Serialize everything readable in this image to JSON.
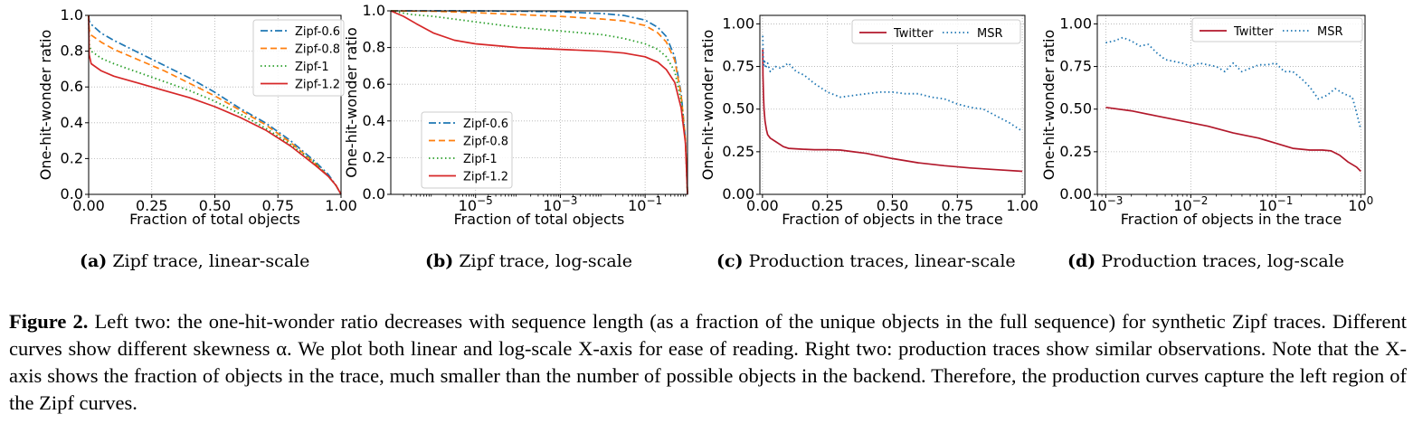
{
  "colors": {
    "zipf06": "#1f77b4",
    "zipf08": "#ff7f0e",
    "zipf1": "#2ca02c",
    "zipf12": "#d62728",
    "twitter": "#b2182b",
    "msr": "#1f77b4"
  },
  "chart_data": [
    {
      "type": "line",
      "title": "",
      "xlabel": "Fraction of total objects",
      "ylabel": "One-hit-wonder ratio",
      "xscale": "linear",
      "xlim": [
        0,
        1
      ],
      "ylim": [
        0,
        1
      ],
      "xticks": [
        0,
        0.25,
        0.5,
        0.75,
        1
      ],
      "xtick_labels": [
        "0.00",
        "0.25",
        "0.50",
        "0.75",
        "1.00"
      ],
      "yticks": [
        0,
        0.2,
        0.4,
        0.6,
        0.8,
        1
      ],
      "ytick_labels": [
        "0.0",
        "0.2",
        "0.4",
        "0.6",
        "0.8",
        "1.0"
      ],
      "legend_position": "top-right",
      "series": [
        {
          "name": "Zipf-0.6",
          "style": "dashdot",
          "color_key": "zipf06",
          "x": [
            0,
            0.002,
            0.01,
            0.05,
            0.1,
            0.2,
            0.3,
            0.4,
            0.5,
            0.6,
            0.7,
            0.8,
            0.9,
            0.95,
            0.98,
            1
          ],
          "y": [
            1,
            0.97,
            0.95,
            0.9,
            0.86,
            0.79,
            0.72,
            0.65,
            0.57,
            0.48,
            0.4,
            0.3,
            0.18,
            0.11,
            0.05,
            0
          ]
        },
        {
          "name": "Zipf-0.8",
          "style": "dashed",
          "color_key": "zipf08",
          "x": [
            0,
            0.002,
            0.01,
            0.05,
            0.1,
            0.2,
            0.3,
            0.4,
            0.5,
            0.6,
            0.7,
            0.8,
            0.9,
            0.95,
            0.98,
            1
          ],
          "y": [
            1,
            0.92,
            0.89,
            0.85,
            0.81,
            0.75,
            0.69,
            0.62,
            0.55,
            0.47,
            0.39,
            0.29,
            0.17,
            0.1,
            0.05,
            0
          ]
        },
        {
          "name": "Zipf-1",
          "style": "dotted",
          "color_key": "zipf1",
          "x": [
            0,
            0.002,
            0.01,
            0.05,
            0.1,
            0.2,
            0.3,
            0.4,
            0.5,
            0.6,
            0.7,
            0.8,
            0.9,
            0.95,
            0.98,
            1
          ],
          "y": [
            1,
            0.84,
            0.8,
            0.76,
            0.73,
            0.68,
            0.63,
            0.58,
            0.52,
            0.45,
            0.37,
            0.28,
            0.17,
            0.1,
            0.05,
            0
          ]
        },
        {
          "name": "Zipf-1.2",
          "style": "solid",
          "color_key": "zipf12",
          "x": [
            0,
            0.002,
            0.01,
            0.05,
            0.1,
            0.2,
            0.3,
            0.4,
            0.5,
            0.6,
            0.7,
            0.8,
            0.9,
            0.95,
            0.98,
            1
          ],
          "y": [
            1,
            0.78,
            0.73,
            0.69,
            0.66,
            0.62,
            0.58,
            0.54,
            0.49,
            0.43,
            0.36,
            0.27,
            0.16,
            0.1,
            0.05,
            0
          ]
        }
      ]
    },
    {
      "type": "line",
      "title": "",
      "xlabel": "Fraction of total objects",
      "ylabel": "One-hit-wonder ratio",
      "xscale": "log",
      "xlim_log10": [
        -7,
        0
      ],
      "ylim": [
        0,
        1
      ],
      "xticks_log10": [
        -5,
        -3,
        -1
      ],
      "xtick_labels": [
        "10^-5",
        "10^-3",
        "10^-1"
      ],
      "yticks": [
        0,
        0.2,
        0.4,
        0.6,
        0.8,
        1
      ],
      "ytick_labels": [
        "0.0",
        "0.2",
        "0.4",
        "0.6",
        "0.8",
        "1.0"
      ],
      "legend_position": "lower-left",
      "series": [
        {
          "name": "Zipf-0.6",
          "style": "dashdot",
          "color_key": "zipf06",
          "x_log10": [
            -7,
            -6,
            -5,
            -4,
            -3,
            -2,
            -1.5,
            -1,
            -0.7,
            -0.5,
            -0.3,
            -0.15,
            -0.05,
            0
          ],
          "y": [
            1,
            1,
            1,
            0.998,
            0.995,
            0.985,
            0.975,
            0.95,
            0.91,
            0.86,
            0.75,
            0.55,
            0.3,
            0
          ]
        },
        {
          "name": "Zipf-0.8",
          "style": "dashed",
          "color_key": "zipf08",
          "x_log10": [
            -7,
            -6,
            -5,
            -4,
            -3,
            -2,
            -1.5,
            -1,
            -0.7,
            -0.5,
            -0.3,
            -0.15,
            -0.05,
            0
          ],
          "y": [
            1,
            0.998,
            0.99,
            0.98,
            0.97,
            0.955,
            0.945,
            0.92,
            0.88,
            0.83,
            0.73,
            0.54,
            0.3,
            0
          ]
        },
        {
          "name": "Zipf-1",
          "style": "dotted",
          "color_key": "zipf1",
          "x_log10": [
            -7,
            -6.5,
            -6,
            -5,
            -4,
            -3,
            -2,
            -1.5,
            -1,
            -0.7,
            -0.5,
            -0.3,
            -0.15,
            -0.05,
            0
          ],
          "y": [
            1,
            0.98,
            0.97,
            0.94,
            0.91,
            0.89,
            0.87,
            0.85,
            0.82,
            0.79,
            0.75,
            0.67,
            0.51,
            0.29,
            0
          ]
        },
        {
          "name": "Zipf-1.2",
          "style": "solid",
          "color_key": "zipf12",
          "x_log10": [
            -7,
            -6.7,
            -6.4,
            -6,
            -5.5,
            -5,
            -4,
            -3,
            -2,
            -1.5,
            -1,
            -0.7,
            -0.5,
            -0.3,
            -0.15,
            -0.05,
            0
          ],
          "y": [
            1,
            0.97,
            0.93,
            0.88,
            0.84,
            0.82,
            0.8,
            0.79,
            0.78,
            0.77,
            0.75,
            0.72,
            0.68,
            0.61,
            0.47,
            0.28,
            0
          ]
        }
      ]
    },
    {
      "type": "line",
      "title": "",
      "xlabel": "Fraction of objects in the trace",
      "ylabel": "One-hit-wonder ratio",
      "xscale": "linear",
      "xlim": [
        -0.01,
        1.01
      ],
      "ylim": [
        0,
        1.05
      ],
      "xticks": [
        0,
        0.25,
        0.5,
        0.75,
        1
      ],
      "xtick_labels": [
        "0.00",
        "0.25",
        "0.50",
        "0.75",
        "1.00"
      ],
      "yticks": [
        0,
        0.25,
        0.5,
        0.75,
        1
      ],
      "ytick_labels": [
        "0.00",
        "0.25",
        "0.50",
        "0.75",
        "1.00"
      ],
      "legend_position": "top-right",
      "series": [
        {
          "name": "Twitter",
          "style": "solid",
          "color_key": "twitter",
          "x": [
            0.001,
            0.002,
            0.004,
            0.006,
            0.01,
            0.015,
            0.02,
            0.03,
            0.05,
            0.08,
            0.1,
            0.15,
            0.2,
            0.25,
            0.3,
            0.35,
            0.4,
            0.45,
            0.5,
            0.6,
            0.7,
            0.8,
            0.9,
            1.0
          ],
          "y": [
            0.85,
            0.7,
            0.58,
            0.5,
            0.43,
            0.38,
            0.35,
            0.33,
            0.31,
            0.28,
            0.27,
            0.265,
            0.262,
            0.262,
            0.26,
            0.25,
            0.24,
            0.225,
            0.21,
            0.185,
            0.168,
            0.155,
            0.145,
            0.135
          ]
        },
        {
          "name": "MSR",
          "style": "dotted",
          "color_key": "msr",
          "x": [
            0.001,
            0.003,
            0.005,
            0.008,
            0.012,
            0.02,
            0.03,
            0.05,
            0.07,
            0.1,
            0.13,
            0.16,
            0.2,
            0.25,
            0.3,
            0.35,
            0.4,
            0.45,
            0.5,
            0.55,
            0.6,
            0.65,
            0.7,
            0.75,
            0.8,
            0.85,
            0.9,
            0.95,
            1.0
          ],
          "y": [
            0.93,
            0.8,
            0.76,
            0.78,
            0.74,
            0.77,
            0.72,
            0.75,
            0.74,
            0.77,
            0.72,
            0.7,
            0.65,
            0.6,
            0.57,
            0.58,
            0.59,
            0.6,
            0.6,
            0.59,
            0.59,
            0.57,
            0.56,
            0.53,
            0.51,
            0.5,
            0.46,
            0.42,
            0.37
          ]
        }
      ]
    },
    {
      "type": "line",
      "title": "",
      "xlabel": "Fraction of objects in the trace",
      "ylabel": "One-hit-wonder ratio",
      "xscale": "log",
      "xlim_log10": [
        -3.1,
        0.05
      ],
      "ylim": [
        0,
        1.05
      ],
      "xticks_log10": [
        -3,
        -2,
        -1,
        0
      ],
      "xtick_labels": [
        "10^-3",
        "10^-2",
        "10^-1",
        "10^0"
      ],
      "yticks": [
        0,
        0.25,
        0.5,
        0.75,
        1
      ],
      "ytick_labels": [
        "0.00",
        "0.25",
        "0.50",
        "0.75",
        "1.00"
      ],
      "legend_position": "top-right",
      "series": [
        {
          "name": "Twitter",
          "style": "solid",
          "color_key": "twitter",
          "x_log10": [
            -3,
            -2.7,
            -2.4,
            -2.1,
            -1.8,
            -1.5,
            -1.2,
            -1,
            -0.8,
            -0.6,
            -0.45,
            -0.35,
            -0.25,
            -0.15,
            -0.05,
            0
          ],
          "y": [
            0.51,
            0.49,
            0.46,
            0.43,
            0.4,
            0.36,
            0.33,
            0.3,
            0.27,
            0.26,
            0.26,
            0.255,
            0.23,
            0.19,
            0.16,
            0.135
          ]
        },
        {
          "name": "MSR",
          "style": "dotted",
          "color_key": "msr",
          "x_log10": [
            -3,
            -2.9,
            -2.8,
            -2.7,
            -2.6,
            -2.5,
            -2.4,
            -2.3,
            -2.2,
            -2.1,
            -2.0,
            -1.9,
            -1.8,
            -1.7,
            -1.6,
            -1.5,
            -1.4,
            -1.3,
            -1.2,
            -1.1,
            -1.0,
            -0.9,
            -0.8,
            -0.7,
            -0.6,
            -0.5,
            -0.4,
            -0.3,
            -0.2,
            -0.1,
            -0.05,
            0
          ],
          "y": [
            0.89,
            0.9,
            0.92,
            0.9,
            0.87,
            0.88,
            0.83,
            0.79,
            0.78,
            0.77,
            0.75,
            0.77,
            0.76,
            0.75,
            0.72,
            0.77,
            0.72,
            0.74,
            0.76,
            0.76,
            0.77,
            0.72,
            0.72,
            0.68,
            0.63,
            0.56,
            0.58,
            0.62,
            0.59,
            0.57,
            0.48,
            0.38
          ]
        }
      ]
    }
  ],
  "subcaptions": [
    {
      "tag": "(a)",
      "text": "Zipf trace, linear-scale"
    },
    {
      "tag": "(b)",
      "text": "Zipf trace, log-scale"
    },
    {
      "tag": "(c)",
      "text": "Production traces, linear-scale"
    },
    {
      "tag": "(d)",
      "text": "Production traces, log-scale"
    }
  ],
  "caption": {
    "label": "Figure 2.",
    "text": "Left two: the one-hit-wonder ratio decreases with sequence length (as a fraction of the unique objects in the full sequence) for synthetic Zipf traces. Different curves show different skewness α. We plot both linear and log-scale X-axis for ease of reading. Right two: production traces show similar observations. Note that the X-axis shows the fraction of objects in the trace, much smaller than the number of possible objects in the backend. Therefore, the production curves capture the left region of the Zipf curves."
  }
}
